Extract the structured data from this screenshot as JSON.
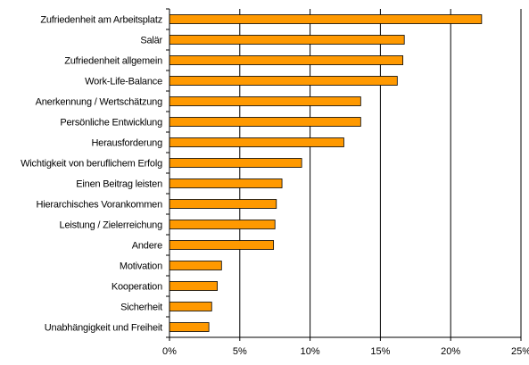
{
  "chart_data": {
    "type": "bar",
    "orientation": "horizontal",
    "categories": [
      "Zufriedenheit am Arbeitsplatz",
      "Salär",
      "Zufriedenheit allgemein",
      "Work-Life-Balance",
      "Anerkennung / Wertschätzung",
      "Persönliche Entwicklung",
      "Herausforderung",
      "Wichtigkeit von beruflichem Erfolg",
      "Einen Beitrag leisten",
      "Hierarchisches Vorankommen",
      "Leistung / Zielerreichung",
      "Andere",
      "Motivation",
      "Kooperation",
      "Sicherheit",
      "Unabhängigkeit und Freiheit"
    ],
    "values": [
      22.2,
      16.7,
      16.6,
      16.2,
      13.6,
      13.6,
      12.4,
      9.4,
      8.0,
      7.6,
      7.5,
      7.4,
      3.7,
      3.4,
      3.0,
      2.8
    ],
    "xlim": [
      0,
      25
    ],
    "xticks": [
      "0%",
      "5%",
      "10%",
      "15%",
      "20%",
      "25%"
    ],
    "xtick_values": [
      0,
      5,
      10,
      15,
      20,
      25
    ],
    "grid": "vertical",
    "legend": "none",
    "bar_color": "#FF9900",
    "bar_edge_color": "#000000",
    "title": "",
    "xlabel": "",
    "ylabel": ""
  }
}
